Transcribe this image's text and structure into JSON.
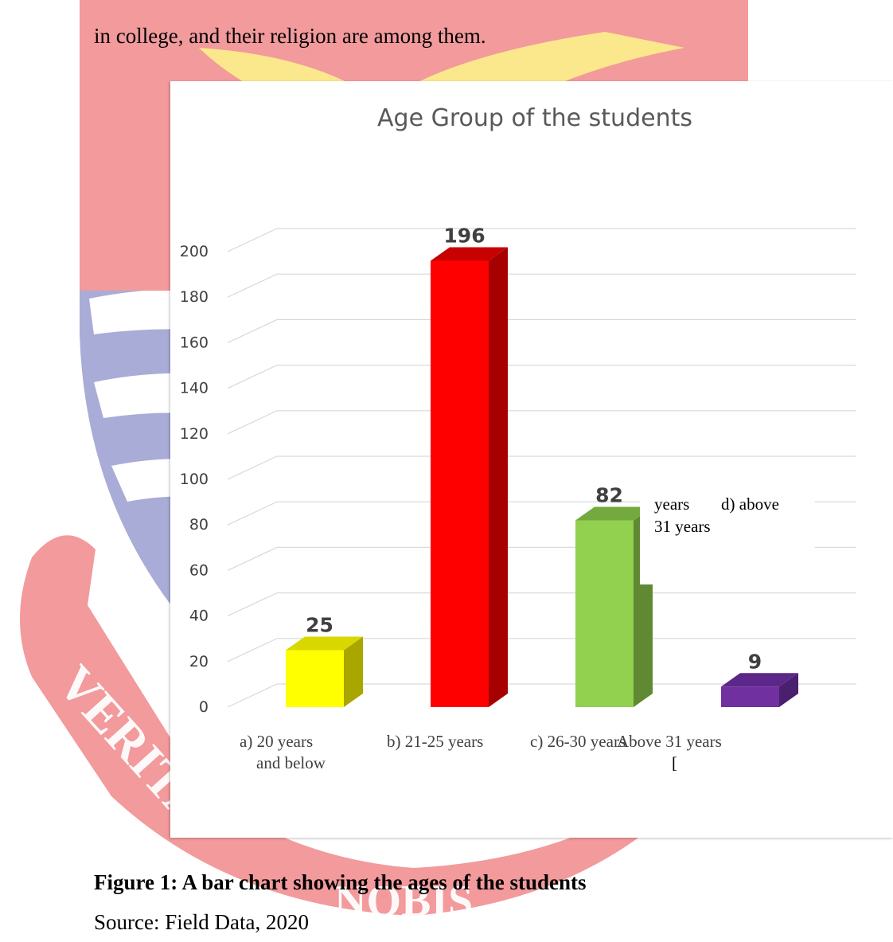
{
  "page": {
    "intro_text": "in college, and their religion are among them.",
    "caption": "Figure 1: A bar chart showing the ages of the students",
    "source": "Source: Field Data, 2020",
    "stray_text": [
      "years",
      "d) above",
      "31 years",
      "["
    ],
    "watermark_text": [
      "VERITA",
      "NOBIS"
    ]
  },
  "colors": {
    "watermark_red": "#f29a9c",
    "watermark_blue": "#a9acd6",
    "watermark_yellow": "#fbe88c"
  },
  "chart_data": {
    "type": "bar",
    "title": "Age Group of the students",
    "xlabel": "",
    "ylabel": "",
    "ylim": [
      0,
      200
    ],
    "yticks": [
      0,
      20,
      40,
      60,
      80,
      100,
      120,
      140,
      160,
      180,
      200
    ],
    "grid": true,
    "style": "3d-column",
    "categories": [
      {
        "text_lines": [
          "a)      20  years",
          "and below"
        ]
      },
      {
        "text_lines": [
          "b)      21-25 years"
        ]
      },
      {
        "text_lines": [
          "c)      26-30 years"
        ]
      },
      {
        "text_lines": [
          "Above 31 years"
        ]
      }
    ],
    "values": [
      25,
      196,
      82,
      9
    ],
    "bar_colors": [
      "#ffff00",
      "#ff0000",
      "#92d050",
      "#7030a0"
    ],
    "bar_side_colors": [
      "#a9a600",
      "#a60000",
      "#5f8a33",
      "#4a1f6d"
    ],
    "bar_top_colors": [
      "#d8d800",
      "#c80000",
      "#74aa3d",
      "#5c2789"
    ]
  }
}
